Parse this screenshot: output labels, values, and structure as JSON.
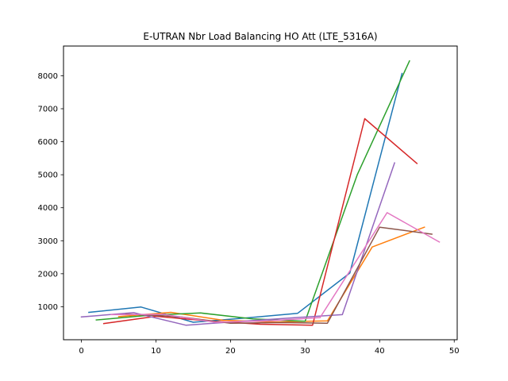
{
  "chart_data": {
    "type": "line",
    "title": "E-UTRAN Nbr Load Balancing HO Att (LTE_5316A)",
    "xlabel": "",
    "ylabel": "",
    "xlim": [
      -2.4,
      50.4
    ],
    "ylim": [
      0,
      8900
    ],
    "xticks": [
      0,
      10,
      20,
      30,
      40,
      50
    ],
    "yticks": [
      1000,
      2000,
      3000,
      4000,
      5000,
      6000,
      7000,
      8000
    ],
    "grid": false,
    "legend": "none",
    "series": [
      {
        "color": "#1f77b4",
        "points": [
          [
            1,
            830
          ],
          [
            8,
            990
          ],
          [
            15,
            530
          ],
          [
            22,
            660
          ],
          [
            29,
            800
          ],
          [
            36,
            2020
          ],
          [
            43,
            8070
          ]
        ]
      },
      {
        "color": "#ff7f0e",
        "points": [
          [
            5,
            700
          ],
          [
            12,
            830
          ],
          [
            19,
            590
          ],
          [
            26,
            540
          ],
          [
            33,
            570
          ],
          [
            39,
            2810
          ],
          [
            46,
            3410
          ]
        ]
      },
      {
        "color": "#2ca02c",
        "points": [
          [
            2,
            600
          ],
          [
            9,
            740
          ],
          [
            16,
            810
          ],
          [
            23,
            630
          ],
          [
            30,
            560
          ],
          [
            37,
            5000
          ],
          [
            44,
            8450
          ]
        ]
      },
      {
        "color": "#d62728",
        "points": [
          [
            3,
            490
          ],
          [
            10,
            710
          ],
          [
            17,
            570
          ],
          [
            24,
            470
          ],
          [
            31,
            440
          ],
          [
            38,
            6700
          ],
          [
            45,
            5340
          ]
        ]
      },
      {
        "color": "#9467bd",
        "points": [
          [
            0,
            690
          ],
          [
            7,
            820
          ],
          [
            14,
            440
          ],
          [
            21,
            550
          ],
          [
            28,
            660
          ],
          [
            35,
            760
          ],
          [
            42,
            5360
          ]
        ]
      },
      {
        "color": "#8c564b",
        "points": [
          [
            6,
            780
          ],
          [
            13,
            700
          ],
          [
            20,
            500
          ],
          [
            27,
            520
          ],
          [
            33,
            500
          ],
          [
            40,
            3410
          ],
          [
            47,
            3200
          ]
        ]
      },
      {
        "color": "#e377c2",
        "points": [
          [
            4,
            760
          ],
          [
            11,
            770
          ],
          [
            18,
            530
          ],
          [
            25,
            570
          ],
          [
            32,
            670
          ],
          [
            41,
            3850
          ],
          [
            48,
            2960
          ]
        ]
      }
    ]
  }
}
